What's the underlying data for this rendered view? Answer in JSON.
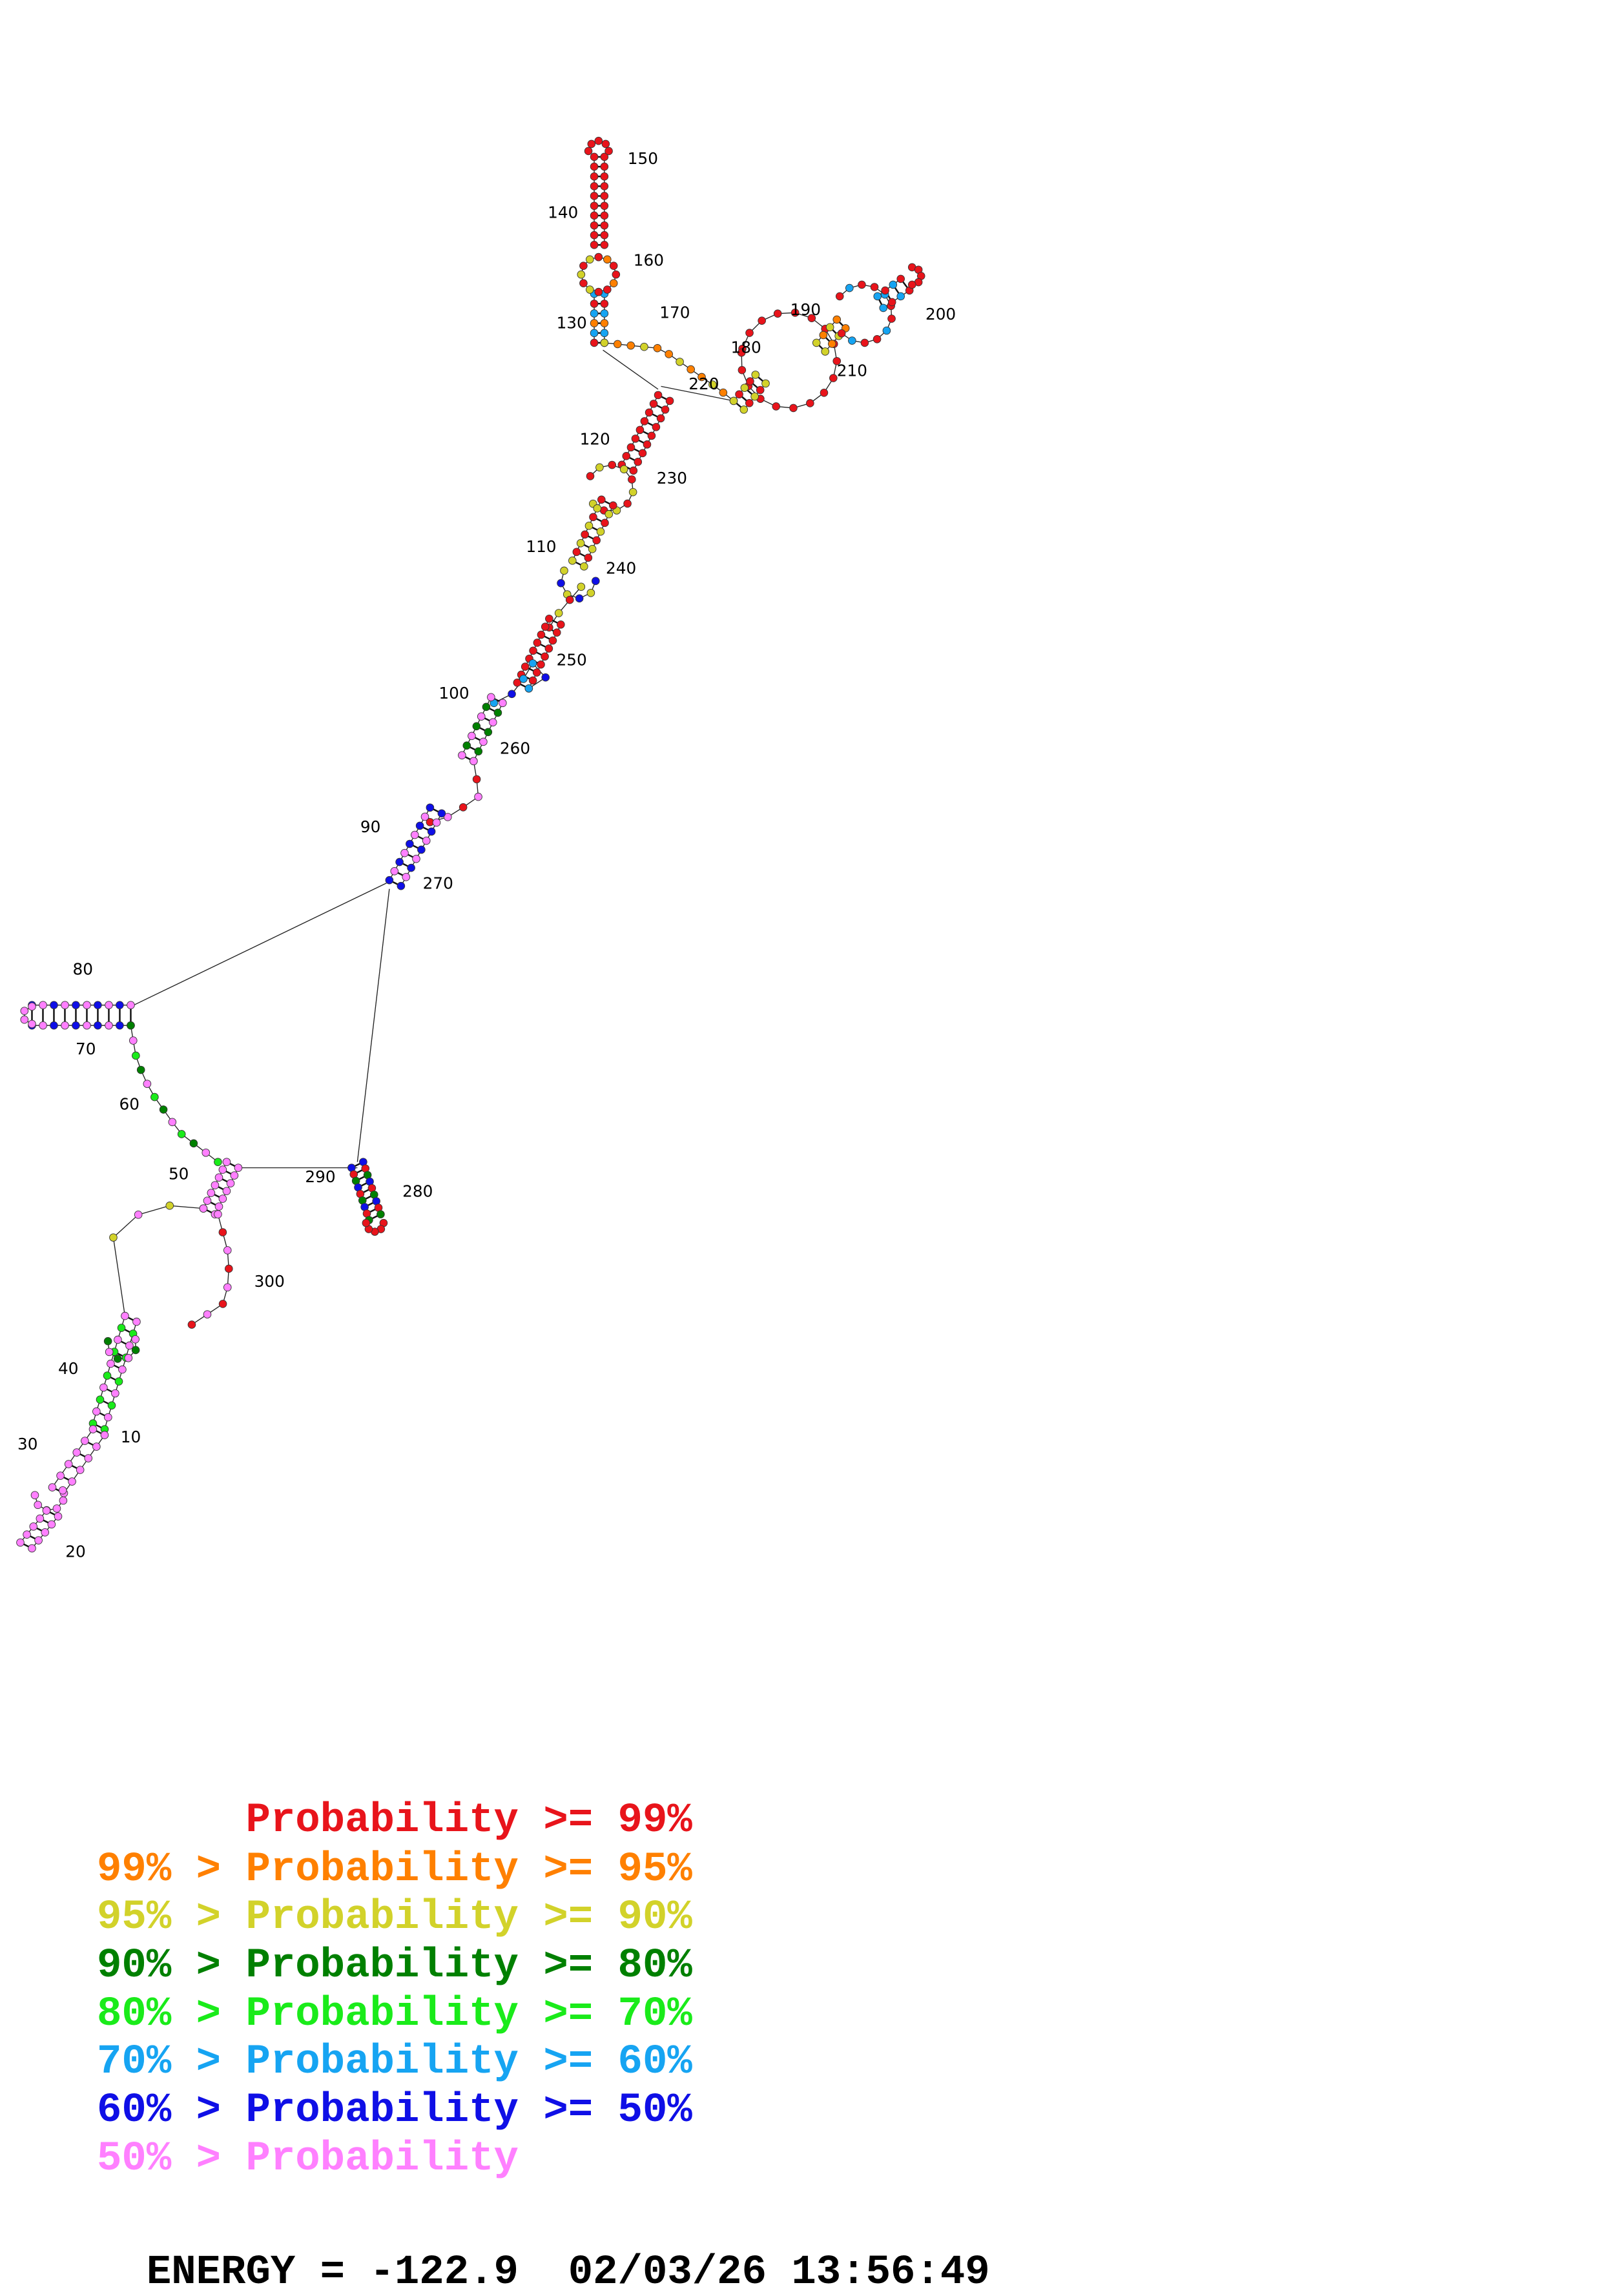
{
  "structure": {
    "position_labels": [
      "10",
      "20",
      "30",
      "40",
      "50",
      "60",
      "70",
      "80",
      "90",
      "100",
      "110",
      "120",
      "130",
      "140",
      "150",
      "160",
      "170",
      "180",
      "190",
      "200",
      "210",
      "220",
      "230",
      "240",
      "250",
      "260",
      "270",
      "280",
      "290",
      "300"
    ],
    "nucleotide_colors": {
      "p99": "#e8141b",
      "p95": "#ff8000",
      "p90": "#d2d22a",
      "p80": "#008000",
      "p70": "#1aeb1a",
      "p60": "#16a4f2",
      "p50": "#0f0fe6",
      "plow": "#ff80ff"
    }
  },
  "legend": [
    {
      "prefix": "     ",
      "rest": "Probability >= 99%",
      "color": "#e8141b"
    },
    {
      "prefix": "99% > ",
      "rest": "Probability >= 95%",
      "color": "#ff8000"
    },
    {
      "prefix": "95% > ",
      "rest": "Probability >= 90%",
      "color": "#d2d22a"
    },
    {
      "prefix": "90% > ",
      "rest": "Probability >= 80%",
      "color": "#008000"
    },
    {
      "prefix": "80% > ",
      "rest": "Probability >= 70%",
      "color": "#1aeb1a"
    },
    {
      "prefix": "70% > ",
      "rest": "Probability >= 60%",
      "color": "#16a4f2"
    },
    {
      "prefix": "60% > ",
      "rest": "Probability >= 50%",
      "color": "#0f0fe6"
    },
    {
      "prefix": "50% > ",
      "rest": "Probability",
      "color": "#ff80ff"
    }
  ],
  "footer": {
    "energy_label": "ENERGY = ",
    "energy_value": "-122.9",
    "timestamp": "02/03/26 13:56:49"
  }
}
